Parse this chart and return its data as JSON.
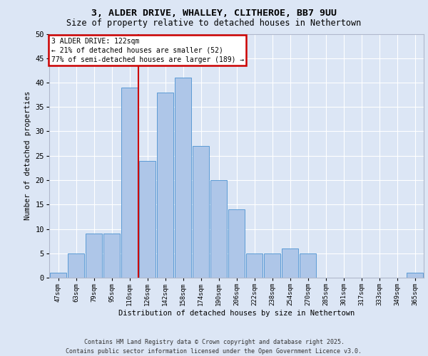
{
  "title_line1": "3, ALDER DRIVE, WHALLEY, CLITHEROE, BB7 9UU",
  "title_line2": "Size of property relative to detached houses in Nethertown",
  "xlabel": "Distribution of detached houses by size in Nethertown",
  "ylabel": "Number of detached properties",
  "categories": [
    "47sqm",
    "63sqm",
    "79sqm",
    "95sqm",
    "110sqm",
    "126sqm",
    "142sqm",
    "158sqm",
    "174sqm",
    "190sqm",
    "206sqm",
    "222sqm",
    "238sqm",
    "254sqm",
    "270sqm",
    "285sqm",
    "301sqm",
    "317sqm",
    "333sqm",
    "349sqm",
    "365sqm"
  ],
  "values": [
    1,
    5,
    9,
    9,
    39,
    24,
    38,
    41,
    27,
    20,
    14,
    5,
    5,
    6,
    5,
    0,
    0,
    0,
    0,
    0,
    1
  ],
  "bar_color": "#aec6e8",
  "bar_edge_color": "#5b9bd5",
  "annotation_title": "3 ALDER DRIVE: 122sqm",
  "annotation_line2": "← 21% of detached houses are smaller (52)",
  "annotation_line3": "77% of semi-detached houses are larger (189) →",
  "annotation_box_color": "#ffffff",
  "annotation_border_color": "#cc0000",
  "red_line_color": "#cc0000",
  "background_color": "#dce6f5",
  "fig_background_color": "#dce6f5",
  "grid_color": "#ffffff",
  "ylim": [
    0,
    50
  ],
  "yticks": [
    0,
    5,
    10,
    15,
    20,
    25,
    30,
    35,
    40,
    45,
    50
  ],
  "footer_line1": "Contains HM Land Registry data © Crown copyright and database right 2025.",
  "footer_line2": "Contains public sector information licensed under the Open Government Licence v3.0."
}
